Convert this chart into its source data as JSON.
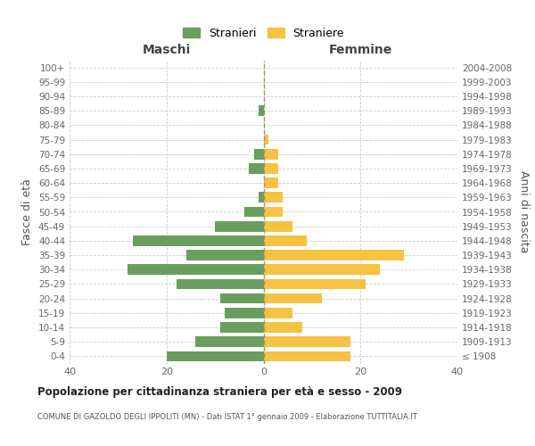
{
  "age_groups": [
    "100+",
    "95-99",
    "90-94",
    "85-89",
    "80-84",
    "75-79",
    "70-74",
    "65-69",
    "60-64",
    "55-59",
    "50-54",
    "45-49",
    "40-44",
    "35-39",
    "30-34",
    "25-29",
    "20-24",
    "15-19",
    "10-14",
    "5-9",
    "0-4"
  ],
  "birth_years": [
    "≤ 1908",
    "1909-1913",
    "1914-1918",
    "1919-1923",
    "1924-1928",
    "1929-1933",
    "1934-1938",
    "1939-1943",
    "1944-1948",
    "1949-1953",
    "1954-1958",
    "1959-1963",
    "1964-1968",
    "1969-1973",
    "1974-1978",
    "1979-1983",
    "1984-1988",
    "1989-1993",
    "1994-1998",
    "1999-2003",
    "2004-2008"
  ],
  "maschi": [
    0,
    0,
    0,
    1,
    0,
    0,
    2,
    3,
    0,
    1,
    4,
    10,
    27,
    16,
    28,
    18,
    9,
    8,
    9,
    14,
    20
  ],
  "femmine": [
    0,
    0,
    0,
    0,
    0,
    1,
    3,
    3,
    3,
    4,
    4,
    6,
    9,
    29,
    24,
    21,
    12,
    6,
    8,
    18,
    18
  ],
  "male_color": "#6a9e5e",
  "female_color": "#f5c242",
  "background_color": "#ffffff",
  "grid_color": "#cccccc",
  "title": "Popolazione per cittadinanza straniera per età e sesso - 2009",
  "subtitle": "COMUNE DI GAZOLDO DEGLI IPPOLITI (MN) - Dati ISTAT 1° gennaio 2009 - Elaborazione TUTTITALIA.IT",
  "xlabel_left": "Maschi",
  "xlabel_right": "Femmine",
  "ylabel_left": "Fasce di età",
  "ylabel_right": "Anni di nascita",
  "legend_male": "Stranieri",
  "legend_female": "Straniere",
  "xlim": 40
}
